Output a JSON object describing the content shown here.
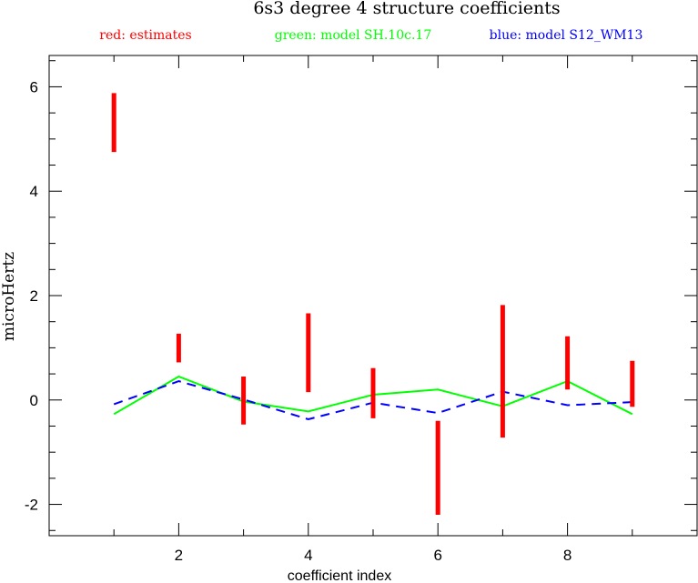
{
  "chart_data": {
    "type": "line",
    "title": "6s3 degree 4 structure coefficients",
    "legend": [
      {
        "text": "red: estimates",
        "color": "#ff0000"
      },
      {
        "text": "green: model SH.10c.17",
        "color": "#00ff00"
      },
      {
        "text": "blue: model S12_WM13",
        "color": "#0000ff"
      }
    ],
    "legend_placement": "top",
    "xlabel": "coefficient index",
    "ylabel": "microHertz",
    "xlim": [
      0,
      10
    ],
    "ylim": [
      -2.6,
      6.6
    ],
    "x_ticks": [
      2,
      4,
      6,
      8
    ],
    "x_tick_labels": [
      "2",
      "4",
      "6",
      "8"
    ],
    "y_ticks": [
      -2,
      0,
      2,
      4,
      6
    ],
    "y_tick_labels": [
      "-2",
      "0",
      "2",
      "4",
      "6"
    ],
    "grid": false,
    "estimates": {
      "color": "#ff0000",
      "style": "error-bar",
      "x": [
        1,
        2,
        3,
        4,
        5,
        6,
        7,
        8,
        9
      ],
      "low": [
        4.75,
        0.72,
        -0.47,
        0.15,
        -0.35,
        -2.2,
        -0.72,
        0.2,
        -0.13
      ],
      "high": [
        5.88,
        1.27,
        0.45,
        1.66,
        0.61,
        -0.4,
        1.82,
        1.22,
        0.75
      ]
    },
    "series": [
      {
        "name": "model SH.10c.17",
        "color": "#00ff00",
        "style": "solid",
        "x": [
          1,
          2,
          3,
          4,
          5,
          6,
          7,
          8,
          9
        ],
        "values": [
          -0.27,
          0.45,
          -0.03,
          -0.22,
          0.1,
          0.2,
          -0.12,
          0.36,
          -0.27
        ]
      },
      {
        "name": "model S12_WM13",
        "color": "#0000ff",
        "style": "dashed",
        "x": [
          1,
          2,
          3,
          4,
          5,
          6,
          7,
          8,
          9
        ],
        "values": [
          -0.08,
          0.36,
          0.01,
          -0.37,
          -0.05,
          -0.25,
          0.16,
          -0.1,
          -0.04
        ]
      }
    ]
  }
}
